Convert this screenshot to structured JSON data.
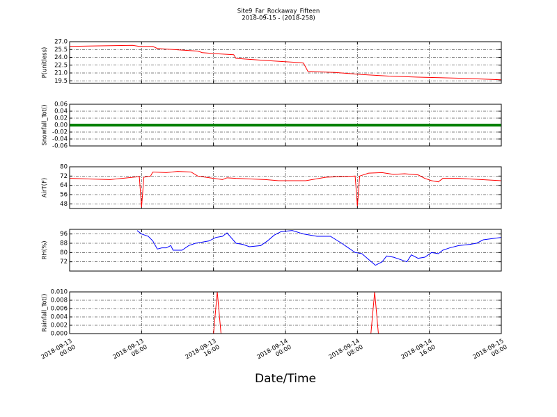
{
  "title": "Site9_Far_Rockaway_Fifteen",
  "subtitle": "2018-09-15 - (2018-258)",
  "xlabel": "Date/Time",
  "xlim": [
    "2018-09-13 00:00",
    "2018-09-15 00:00"
  ],
  "xticks": [
    {
      "value": "2018-09-13 00:00",
      "label": "2018-09-13\n00:00"
    },
    {
      "value": "2018-09-13 08:00",
      "label": "2018-09-13\n08:00"
    },
    {
      "value": "2018-09-13 16:00",
      "label": "2018-09-13\n16:00"
    },
    {
      "value": "2018-09-14 00:00",
      "label": "2018-09-14\n00:00"
    },
    {
      "value": "2018-09-14 08:00",
      "label": "2018-09-14\n08:00"
    },
    {
      "value": "2018-09-14 16:00",
      "label": "2018-09-14\n16:00"
    },
    {
      "value": "2018-09-15 00:00",
      "label": "2018-09-15\n00:00"
    }
  ],
  "chart_data": [
    {
      "type": "line",
      "ylabel": "P(unitless)",
      "grid": true,
      "ylim": [
        19.0,
        27.0
      ],
      "yticks": [
        {
          "value": 27,
          "label": "27.0"
        },
        25.5,
        {
          "value": 24,
          "label": "24.0"
        },
        22.5,
        {
          "value": 21,
          "label": "21.0"
        },
        19.5
      ],
      "x": [
        "2018-09-13 00:00",
        "2018-09-13 07:00",
        "2018-09-13 07:45",
        "2018-09-13 09:15",
        "2018-09-13 09:45",
        "2018-09-13 11:30",
        "2018-09-13 14:15",
        "2018-09-13 14:45",
        "2018-09-13 16:15",
        "2018-09-13 18:15",
        "2018-09-13 18:30",
        "2018-09-13 21:45",
        "2018-09-14 01:30",
        "2018-09-14 02:00",
        "2018-09-14 02:30",
        "2018-09-14 05:30",
        "2018-09-14 08:30",
        "2018-09-14 11:30",
        "2018-09-14 14:45",
        "2018-09-14 19:15",
        "2018-09-15 00:00"
      ],
      "series": [
        {
          "name": "P",
          "color": "#ff0000",
          "values": [
            26.1,
            26.3,
            26.1,
            26.1,
            25.7,
            25.5,
            25.2,
            24.9,
            24.7,
            24.5,
            23.8,
            23.4,
            23.0,
            22.9,
            21.3,
            21.1,
            20.7,
            20.4,
            20.2,
            20.0,
            19.7
          ]
        }
      ]
    },
    {
      "type": "line",
      "ylabel": "Snowfall_Tot()",
      "grid": true,
      "ylim": [
        -0.06,
        0.06
      ],
      "yticks": [
        0.06,
        0.04,
        0.02,
        {
          "value": 0,
          "label": "0.00"
        },
        -0.02,
        -0.04,
        -0.06
      ],
      "x": [
        "2018-09-13 00:00",
        "2018-09-13 02:00",
        "2018-09-13 04:00",
        "2018-09-13 06:00",
        "2018-09-13 08:00",
        "2018-09-13 10:00",
        "2018-09-13 12:00",
        "2018-09-13 14:00",
        "2018-09-13 16:00",
        "2018-09-13 18:00",
        "2018-09-13 20:00",
        "2018-09-13 22:00",
        "2018-09-14 00:00",
        "2018-09-14 02:00",
        "2018-09-14 04:00",
        "2018-09-14 06:00",
        "2018-09-14 08:00",
        "2018-09-14 10:00",
        "2018-09-14 12:00",
        "2018-09-14 14:00",
        "2018-09-14 16:00",
        "2018-09-14 18:00",
        "2018-09-14 20:00",
        "2018-09-14 22:00",
        "2018-09-15 00:00"
      ],
      "series": [
        {
          "name": "Snowfall_Tot",
          "color": "#008000",
          "values": [
            0,
            0,
            0,
            0,
            0,
            0,
            0,
            0,
            0,
            0,
            0,
            0,
            0,
            0,
            0,
            0,
            0,
            0,
            0,
            0,
            0,
            0,
            0,
            0,
            0
          ]
        }
      ]
    },
    {
      "type": "line",
      "ylabel": "AirT(F)",
      "grid": true,
      "ylim": [
        44,
        80
      ],
      "yticks": [
        48,
        56,
        64,
        72,
        80
      ],
      "x": [
        "2018-09-13 00:00",
        "2018-09-13 04:30",
        "2018-09-13 07:45",
        "2018-09-13 08:00",
        "2018-09-13 08:15",
        "2018-09-13 09:00",
        "2018-09-13 09:15",
        "2018-09-13 10:45",
        "2018-09-13 12:00",
        "2018-09-13 13:30",
        "2018-09-13 14:15",
        "2018-09-13 16:00",
        "2018-09-13 17:00",
        "2018-09-13 17:30",
        "2018-09-13 18:30",
        "2018-09-13 21:45",
        "2018-09-13 23:15",
        "2018-09-14 02:15",
        "2018-09-14 04:30",
        "2018-09-14 07:45",
        "2018-09-14 08:00",
        "2018-09-14 08:15",
        "2018-09-14 09:15",
        "2018-09-14 10:45",
        "2018-09-14 12:00",
        "2018-09-14 13:15",
        "2018-09-14 14:45",
        "2018-09-14 15:30",
        "2018-09-14 16:15",
        "2018-09-14 17:00",
        "2018-09-14 17:30",
        "2018-09-14 19:15",
        "2018-09-14 21:45",
        "2018-09-15 00:00"
      ],
      "series": [
        {
          "name": "AirT",
          "color": "#ff0000",
          "values": [
            70,
            69,
            71.5,
            45,
            71,
            72,
            75.5,
            75,
            76,
            75.5,
            72,
            70,
            69,
            70.5,
            70,
            69,
            68,
            68,
            71,
            72,
            46,
            72,
            74.5,
            75,
            73.5,
            74,
            73,
            70,
            68,
            67,
            70,
            70,
            69,
            68
          ]
        }
      ]
    },
    {
      "type": "line",
      "ylabel": "RH(%)",
      "grid": true,
      "ylim": [
        64,
        100
      ],
      "yticks": [
        72,
        80,
        88,
        96
      ],
      "x": [
        "2018-09-13 07:30",
        "2018-09-13 08:00",
        "2018-09-13 08:45",
        "2018-09-13 09:15",
        "2018-09-13 09:45",
        "2018-09-13 10:15",
        "2018-09-13 10:45",
        "2018-09-13 11:15",
        "2018-09-13 11:30",
        "2018-09-13 12:30",
        "2018-09-13 13:15",
        "2018-09-13 14:00",
        "2018-09-13 14:45",
        "2018-09-13 15:30",
        "2018-09-13 16:15",
        "2018-09-13 17:00",
        "2018-09-13 17:30",
        "2018-09-13 18:30",
        "2018-09-13 19:15",
        "2018-09-13 20:00",
        "2018-09-13 21:15",
        "2018-09-13 22:00",
        "2018-09-13 22:45",
        "2018-09-13 23:30",
        "2018-09-14 00:45",
        "2018-09-14 02:00",
        "2018-09-14 03:30",
        "2018-09-14 05:00",
        "2018-09-14 06:15",
        "2018-09-14 07:00",
        "2018-09-14 07:45",
        "2018-09-14 08:30",
        "2018-09-14 09:15",
        "2018-09-14 10:00",
        "2018-09-14 10:45",
        "2018-09-14 11:15",
        "2018-09-14 12:00",
        "2018-09-14 12:45",
        "2018-09-14 13:30",
        "2018-09-14 14:00",
        "2018-09-14 14:45",
        "2018-09-14 15:30",
        "2018-09-14 16:15",
        "2018-09-14 17:00",
        "2018-09-14 17:30",
        "2018-09-14 18:15",
        "2018-09-14 19:15",
        "2018-09-14 20:30",
        "2018-09-14 21:15",
        "2018-09-14 22:00",
        "2018-09-15 00:00"
      ],
      "series": [
        {
          "name": "RH",
          "color": "#0000ff",
          "values": [
            99,
            96,
            94,
            90,
            83,
            84,
            84,
            86,
            82,
            82,
            86,
            88,
            89,
            90,
            93,
            94,
            97,
            88,
            87,
            85,
            86,
            90,
            95,
            98,
            99,
            96,
            94,
            94,
            88,
            84,
            80,
            79,
            74,
            69,
            72,
            77,
            76,
            74,
            72,
            78,
            75,
            76,
            80,
            79,
            82,
            84,
            86,
            87,
            88,
            91,
            93
          ]
        }
      ]
    },
    {
      "type": "line",
      "ylabel": "Rainfall_Tot()",
      "grid": true,
      "ylim": [
        0,
        0.01
      ],
      "yticks": [
        {
          "value": 0.01,
          "label": "0.010"
        },
        0.008,
        0.006,
        0.004,
        0.002,
        {
          "value": 0,
          "label": "0.000"
        }
      ],
      "x": [
        "2018-09-13 00:00",
        "2018-09-13 16:00",
        "2018-09-13 16:25",
        "2018-09-13 16:50",
        "2018-09-14 09:30",
        "2018-09-14 09:55",
        "2018-09-14 10:20",
        "2018-09-15 00:00"
      ],
      "series": [
        {
          "name": "Rainfall_Tot",
          "color": "#ff0000",
          "values": [
            0,
            0,
            0.01,
            0,
            0,
            0.01,
            0,
            0
          ]
        }
      ]
    }
  ]
}
